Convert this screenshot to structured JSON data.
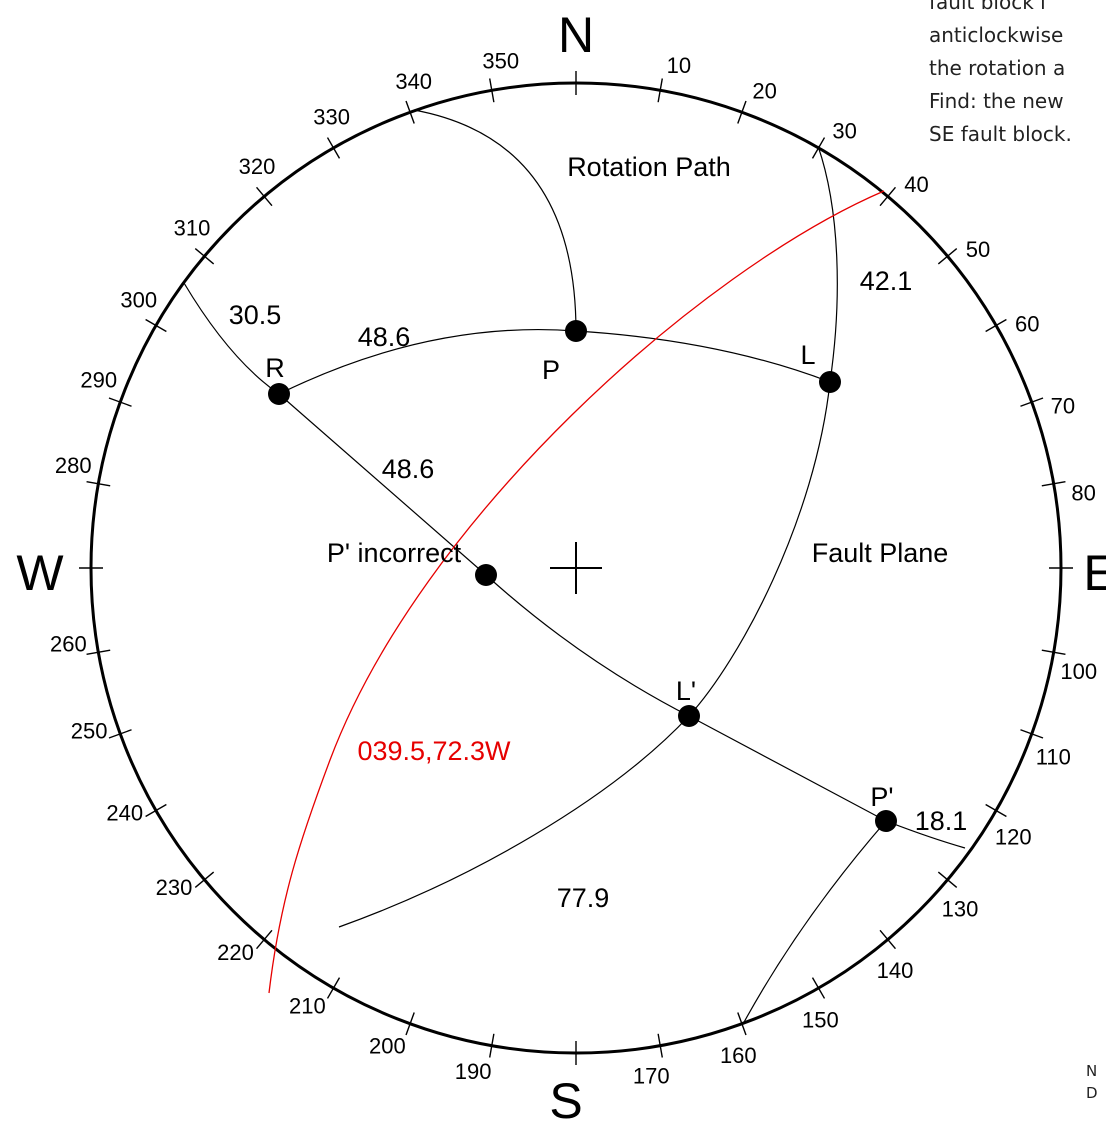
{
  "colors": {
    "ink": "#000000",
    "red": "#e60000"
  },
  "cardinals": {
    "north": "N",
    "south": "S",
    "east": "E",
    "west": "W"
  },
  "azimuth_labels": [
    "10",
    "20",
    "30",
    "40",
    "50",
    "60",
    "70",
    "80",
    "100",
    "110",
    "120",
    "130",
    "140",
    "150",
    "160",
    "170",
    "190",
    "200",
    "210",
    "220",
    "230",
    "240",
    "250",
    "260",
    "280",
    "290",
    "300",
    "310",
    "320",
    "330",
    "340",
    "350"
  ],
  "labels": {
    "rotation_path": "Rotation Path",
    "fault_plane": "Fault Plane",
    "point_p": "P",
    "point_l": "L",
    "point_r": "R",
    "point_l_prime": "L'",
    "point_p_prime": "P'",
    "p_prime_incorrect": "P' incorrect",
    "red_plane": "039.5,72.3W"
  },
  "angles": {
    "a_30_5": "30.5",
    "a_48_6_upper": "48.6",
    "a_48_6_lower": "48.6",
    "a_42_1": "42.1",
    "a_18_1": "18.1",
    "a_77_9": "77.9"
  },
  "problem_text": {
    "line1": "fault block i",
    "line2": "anticlockwise",
    "line3": "the rotation a",
    "line4": "Find: the new",
    "line5": "SE fault block."
  },
  "corner_note": {
    "line1": "N",
    "line2": "D"
  }
}
